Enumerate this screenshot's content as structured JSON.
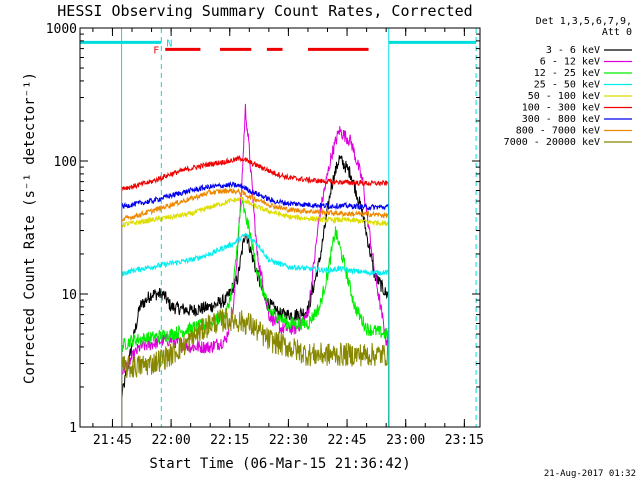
{
  "chart_data": {
    "type": "line",
    "title": "HESSI Observing Summary Count Rates, Corrected",
    "xlabel": "Start Time (06-Mar-15 21:36:42)",
    "ylabel": "Corrected Count Rate (s⁻¹ detector⁻¹)",
    "x_unit": "UT (HH:MM)",
    "yscale": "log",
    "ylim": [
      1,
      1000
    ],
    "xlim": [
      "21:36:42",
      "23:19:00"
    ],
    "x_ticks": [
      "21:45",
      "22:00",
      "22:15",
      "22:30",
      "22:45",
      "23:00",
      "23:15"
    ],
    "y_ticks": [
      {
        "value": 1,
        "label": "1"
      },
      {
        "value": 10,
        "label": "10"
      },
      {
        "value": 100,
        "label": "100"
      },
      {
        "value": 1000,
        "label": "1000"
      }
    ],
    "legend": {
      "header": [
        "Det 1,3,5,6,7,9,",
        "Att 0"
      ],
      "placement": "outside-right"
    },
    "timestamp": "21-Aug-2017 01:32",
    "data_window": [
      "21:47:20",
      "22:55:40"
    ],
    "series": [
      {
        "name": "3 - 6 keV",
        "color": "#000000",
        "x": [
          "21:47",
          "21:52",
          "21:55",
          "21:58",
          "22:00",
          "22:05",
          "22:10",
          "22:14",
          "22:17",
          "22:19",
          "22:21",
          "22:24",
          "22:28",
          "22:32",
          "22:35",
          "22:38",
          "22:41",
          "22:43",
          "22:46",
          "22:49",
          "22:52",
          "22:55"
        ],
        "y": [
          1.5,
          8,
          10,
          10,
          8,
          7.5,
          8,
          9,
          13,
          30,
          18,
          9,
          7,
          7,
          7.5,
          18,
          65,
          105,
          80,
          40,
          14,
          10
        ]
      },
      {
        "name": "6 - 12 keV",
        "color": "#dd00dd",
        "x": [
          "21:47",
          "21:52",
          "21:55",
          "21:58",
          "22:00",
          "22:05",
          "22:10",
          "22:14",
          "22:16",
          "22:18",
          "22:19",
          "22:20",
          "22:22",
          "22:25",
          "22:28",
          "22:32",
          "22:35",
          "22:38",
          "22:41",
          "22:43",
          "22:46",
          "22:49",
          "22:52",
          "22:55"
        ],
        "y": [
          2.5,
          4,
          4.2,
          4.5,
          4.5,
          4,
          4,
          4.5,
          8,
          60,
          250,
          120,
          20,
          7,
          5.5,
          5.5,
          7,
          40,
          110,
          170,
          140,
          70,
          15,
          4.5
        ]
      },
      {
        "name": "12 - 25 keV",
        "color": "#00ee00",
        "x": [
          "21:47",
          "21:50",
          "21:55",
          "22:00",
          "22:05",
          "22:10",
          "22:14",
          "22:16",
          "22:18",
          "22:20",
          "22:22",
          "22:25",
          "22:30",
          "22:35",
          "22:38",
          "22:40",
          "22:42",
          "22:44",
          "22:47",
          "22:50",
          "22:55"
        ],
        "y": [
          4,
          4.5,
          4.7,
          5,
          5.5,
          6,
          7,
          12,
          50,
          30,
          15,
          7.5,
          6,
          6,
          8,
          14,
          30,
          18,
          8,
          5.5,
          5
        ]
      },
      {
        "name": "25 - 50 keV",
        "color": "#00eeee",
        "x": [
          "21:47",
          "21:50",
          "21:55",
          "22:00",
          "22:05",
          "22:10",
          "22:13",
          "22:16",
          "22:19",
          "22:22",
          "22:25",
          "22:30",
          "22:35",
          "22:40",
          "22:43",
          "22:46",
          "22:50",
          "22:55"
        ],
        "y": [
          14,
          15,
          16,
          17,
          18,
          20,
          22,
          24,
          28,
          24,
          18,
          16,
          15.5,
          15,
          15.5,
          15,
          14.5,
          14.5
        ]
      },
      {
        "name": "50 - 100 keV",
        "color": "#dddd00",
        "x": [
          "21:47",
          "21:50",
          "21:55",
          "22:00",
          "22:05",
          "22:10",
          "22:15",
          "22:18",
          "22:20",
          "22:22",
          "22:25",
          "22:30",
          "22:35",
          "22:40",
          "22:45",
          "22:50",
          "22:55"
        ],
        "y": [
          33,
          34,
          36,
          38,
          40,
          45,
          50,
          52,
          48,
          45,
          42,
          38,
          37,
          36,
          36,
          35,
          34
        ]
      },
      {
        "name": "100 - 300 keV",
        "color": "#ee0000",
        "x": [
          "21:47",
          "21:50",
          "21:55",
          "22:00",
          "22:05",
          "22:10",
          "22:15",
          "22:18",
          "22:20",
          "22:23",
          "22:26",
          "22:30",
          "22:35",
          "22:40",
          "22:45",
          "22:50",
          "22:55"
        ],
        "y": [
          62,
          64,
          70,
          80,
          88,
          95,
          100,
          105,
          98,
          90,
          82,
          75,
          72,
          70,
          69,
          68,
          68
        ]
      },
      {
        "name": "300 - 800 keV",
        "color": "#0000ee",
        "x": [
          "21:47",
          "21:50",
          "21:55",
          "22:00",
          "22:05",
          "22:10",
          "22:15",
          "22:18",
          "22:20",
          "22:23",
          "22:26",
          "22:30",
          "22:35",
          "22:40",
          "22:45",
          "22:50",
          "22:55"
        ],
        "y": [
          45,
          47,
          50,
          55,
          60,
          64,
          66,
          65,
          60,
          55,
          50,
          48,
          47,
          46,
          46,
          45,
          45
        ]
      },
      {
        "name": "800 - 7000 keV",
        "color": "#ee8800",
        "x": [
          "21:47",
          "21:50",
          "21:55",
          "22:00",
          "22:05",
          "22:10",
          "22:15",
          "22:18",
          "22:20",
          "22:23",
          "22:26",
          "22:30",
          "22:35",
          "22:40",
          "22:45",
          "22:50",
          "22:55"
        ],
        "y": [
          36,
          38,
          42,
          47,
          52,
          58,
          60,
          58,
          54,
          50,
          46,
          43,
          42,
          41,
          40,
          40,
          39
        ]
      },
      {
        "name": "7000 - 20000 keV",
        "color": "#888800",
        "x": [
          "21:47",
          "21:50",
          "21:55",
          "22:00",
          "22:05",
          "22:10",
          "22:15",
          "22:20",
          "22:25",
          "22:30",
          "22:35",
          "22:40",
          "22:45",
          "22:50",
          "22:55"
        ],
        "y": [
          2.8,
          2.8,
          3,
          3.5,
          4.5,
          6,
          6.5,
          6,
          4.5,
          4,
          3.5,
          3.5,
          3.5,
          3.5,
          3.5
        ]
      }
    ],
    "annotations": {
      "night_marker": {
        "label": "N",
        "color": "#00dddd",
        "segments": [
          [
            "21:36:42",
            "21:57:30"
          ],
          [
            "22:55:40",
            "23:18:00"
          ]
        ],
        "level": 780,
        "boundaries": [
          "21:57:30",
          "23:18:00"
        ]
      },
      "flare_marker": {
        "label": "F",
        "color": "#ee0000",
        "segments": [
          [
            "21:58:30",
            "22:07:30"
          ],
          [
            "22:12:30",
            "22:20:30"
          ],
          [
            "22:24:30",
            "22:28:30"
          ],
          [
            "22:35:00",
            "22:50:30"
          ]
        ],
        "level": 690
      },
      "cyan_boundaries": [
        "21:36:42",
        "21:47:20",
        "22:55:40"
      ]
    }
  }
}
